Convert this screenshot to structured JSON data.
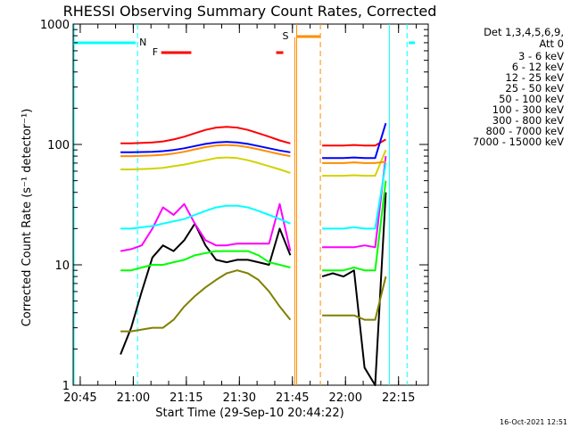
{
  "chart_data": {
    "type": "line",
    "title": "RHESSI Observing Summary Count Rates, Corrected",
    "xlabel": "Start Time (29-Sep-10 20:44:22)",
    "ylabel": "Corrected Count Rate (s⁻¹ detector⁻¹)",
    "ylog": true,
    "ylim": [
      1,
      1000
    ],
    "xlim_minutes": [
      -1.4,
      99
    ],
    "x_ticks": [
      "20:45",
      "21:00",
      "21:15",
      "21:30",
      "21:45",
      "22:00",
      "22:15"
    ],
    "x_tick_minutes": [
      0.6,
      15.6,
      30.6,
      45.6,
      60.6,
      75.6,
      90.6
    ],
    "y_ticks": [
      "1",
      "10",
      "100",
      "1000"
    ],
    "y_tick_values": [
      1,
      10,
      100,
      1000
    ],
    "grid": false,
    "legend_header": [
      "Det 1,3,4,5,6,9,",
      "Att 0"
    ],
    "legend_position": "right",
    "footer_date": "16-Oct-2021 12:51",
    "data_gap_minutes": [
      58,
      68
    ],
    "markers": {
      "N": {
        "label": "N",
        "minutes": [
          16.8,
          93
        ]
      },
      "F": {
        "label": "F",
        "segments": [
          [
            23.5,
            32
          ],
          [
            56,
            58
          ]
        ]
      },
      "S": {
        "label": "S",
        "minutes": [
          61.8,
          68.5
        ]
      }
    },
    "series": [
      {
        "name": "3 - 6 keV",
        "color": "#000000",
        "x": [
          12,
          15,
          18,
          21,
          24,
          27,
          30,
          33,
          36,
          39,
          42,
          45,
          48,
          51,
          54,
          57,
          60,
          63,
          66,
          69,
          72,
          75,
          78,
          81,
          84,
          87,
          90
        ],
        "y": [
          1.8,
          3.0,
          6.0,
          11.5,
          14.5,
          13.0,
          16.0,
          22.0,
          14.5,
          11.0,
          10.5,
          11.0,
          11.0,
          10.5,
          10.0,
          20.0,
          12.0,
          null,
          null,
          8.0,
          8.5,
          8.0,
          9.0,
          1.4,
          1.0,
          40.0,
          null
        ]
      },
      {
        "name": "6 - 12 keV",
        "color": "#ff00ff",
        "x": [
          12,
          15,
          18,
          21,
          24,
          27,
          30,
          33,
          36,
          39,
          42,
          45,
          48,
          51,
          54,
          57,
          60,
          63,
          66,
          69,
          72,
          75,
          78,
          81,
          84,
          87,
          90
        ],
        "y": [
          13.0,
          13.5,
          14.5,
          20.0,
          30.0,
          26.0,
          32.0,
          22.0,
          16.0,
          14.5,
          14.5,
          15.0,
          15.0,
          15.0,
          15.0,
          32.0,
          13.0,
          null,
          null,
          14.0,
          14.0,
          14.0,
          14.0,
          14.5,
          14.0,
          80.0,
          null
        ]
      },
      {
        "name": "12 - 25 keV",
        "color": "#00ff00",
        "x": [
          12,
          15,
          18,
          21,
          24,
          27,
          30,
          33,
          36,
          39,
          42,
          45,
          48,
          51,
          54,
          57,
          60,
          63,
          66,
          69,
          72,
          75,
          78,
          81,
          84,
          87,
          90
        ],
        "y": [
          9.0,
          9.0,
          9.5,
          10.0,
          10.0,
          10.5,
          11.0,
          12.0,
          12.5,
          13.0,
          13.0,
          13.0,
          13.0,
          12.0,
          10.5,
          10.0,
          9.5,
          null,
          null,
          9.0,
          9.0,
          9.0,
          9.5,
          9.0,
          9.0,
          50.0,
          null
        ]
      },
      {
        "name": "25 - 50 keV",
        "color": "#00ffff",
        "x": [
          12,
          15,
          18,
          21,
          24,
          27,
          30,
          33,
          36,
          39,
          42,
          45,
          48,
          51,
          54,
          57,
          60,
          63,
          66,
          69,
          72,
          75,
          78,
          81,
          84,
          87,
          90
        ],
        "y": [
          20.0,
          20.0,
          20.5,
          21.0,
          22.0,
          23.0,
          24.0,
          26.0,
          28.0,
          30.0,
          31.0,
          31.0,
          30.0,
          28.0,
          26.0,
          24.0,
          22.0,
          null,
          null,
          20.0,
          20.0,
          20.0,
          20.5,
          20.0,
          20.0,
          70.0,
          null
        ]
      },
      {
        "name": "50 - 100 keV",
        "color": "#d2d200",
        "x": [
          12,
          15,
          18,
          21,
          24,
          27,
          30,
          33,
          36,
          39,
          42,
          45,
          48,
          51,
          54,
          57,
          60,
          63,
          66,
          69,
          72,
          75,
          78,
          81,
          84,
          87,
          90
        ],
        "y": [
          62.0,
          62.0,
          62.5,
          63.0,
          64.0,
          66.0,
          68.0,
          71.0,
          74.0,
          77.0,
          78.0,
          77.0,
          74.0,
          70.0,
          66.0,
          62.0,
          58.0,
          null,
          null,
          55.0,
          55.0,
          55.0,
          55.5,
          55.0,
          55.0,
          90.0,
          null
        ]
      },
      {
        "name": "100 - 300 keV",
        "color": "#ff0000",
        "x": [
          12,
          15,
          18,
          21,
          24,
          27,
          30,
          33,
          36,
          39,
          42,
          45,
          48,
          51,
          54,
          57,
          60,
          63,
          66,
          69,
          72,
          75,
          78,
          81,
          84,
          87,
          90
        ],
        "y": [
          102.0,
          102.0,
          103.0,
          104.0,
          106.0,
          110.0,
          116.0,
          124.0,
          132.0,
          138.0,
          140.0,
          138.0,
          132.0,
          124.0,
          116.0,
          108.0,
          102.0,
          null,
          null,
          98.0,
          98.0,
          98.0,
          99.0,
          98.0,
          98.0,
          110.0,
          null
        ]
      },
      {
        "name": "300 - 800 keV",
        "color": "#0000ff",
        "x": [
          12,
          15,
          18,
          21,
          24,
          27,
          30,
          33,
          36,
          39,
          42,
          45,
          48,
          51,
          54,
          57,
          60,
          63,
          66,
          69,
          72,
          75,
          78,
          81,
          84,
          87,
          90
        ],
        "y": [
          86.0,
          86.0,
          86.5,
          87.0,
          88.0,
          90.0,
          93.0,
          97.0,
          101.0,
          104.0,
          105.0,
          104.0,
          101.0,
          97.0,
          93.0,
          89.0,
          86.0,
          null,
          null,
          77.0,
          77.0,
          77.0,
          78.0,
          77.0,
          77.0,
          150.0,
          null
        ]
      },
      {
        "name": "800 - 7000 keV",
        "color": "#ff8c00",
        "x": [
          12,
          15,
          18,
          21,
          24,
          27,
          30,
          33,
          36,
          39,
          42,
          45,
          48,
          51,
          54,
          57,
          60,
          63,
          66,
          69,
          72,
          75,
          78,
          81,
          84,
          87,
          90
        ],
        "y": [
          80.0,
          80.0,
          80.5,
          81.0,
          82.0,
          84.0,
          87.0,
          91.0,
          95.0,
          98.0,
          99.0,
          98.0,
          95.0,
          91.0,
          87.0,
          83.0,
          80.0,
          null,
          null,
          70.0,
          70.0,
          70.0,
          71.0,
          70.0,
          70.0,
          72.0,
          null
        ]
      },
      {
        "name": "7000 - 15000 keV",
        "color": "#808000",
        "x": [
          12,
          15,
          18,
          21,
          24,
          27,
          30,
          33,
          36,
          39,
          42,
          45,
          48,
          51,
          54,
          57,
          60,
          63,
          66,
          69,
          72,
          75,
          78,
          81,
          84,
          87,
          90
        ],
        "y": [
          2.8,
          2.8,
          2.9,
          3.0,
          3.0,
          3.5,
          4.5,
          5.5,
          6.5,
          7.5,
          8.5,
          9.0,
          8.5,
          7.5,
          6.0,
          4.5,
          3.5,
          null,
          null,
          3.8,
          3.8,
          3.8,
          3.8,
          3.5,
          3.5,
          8.0,
          null
        ]
      }
    ]
  }
}
